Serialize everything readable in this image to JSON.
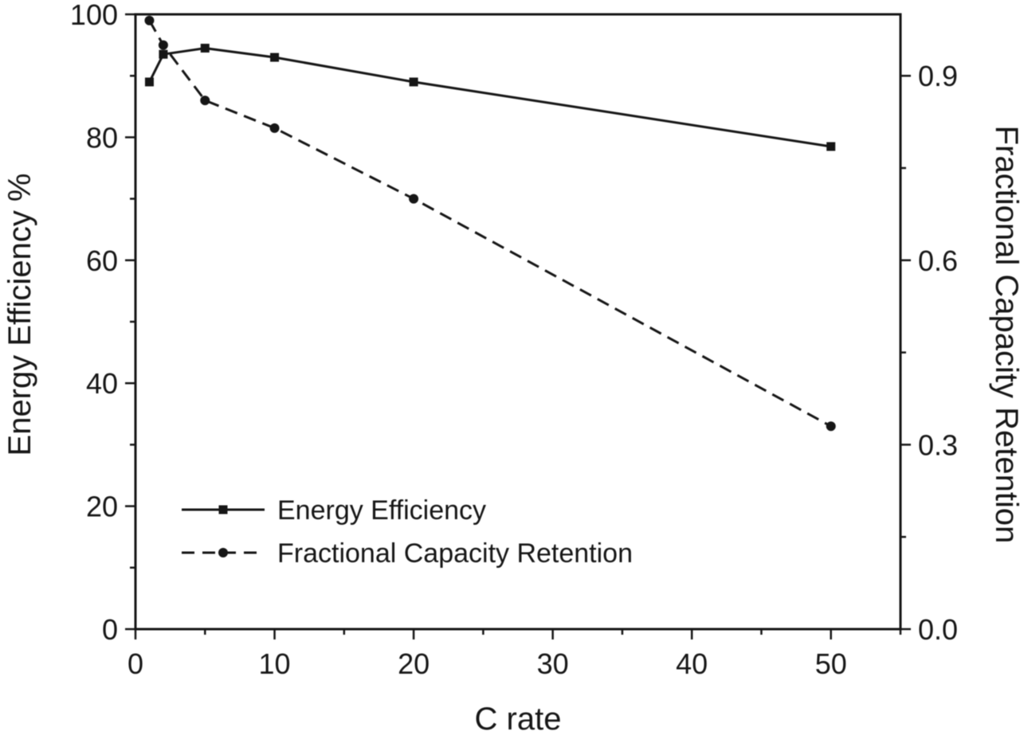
{
  "figure": {
    "background": "#ffffff",
    "ink": "#161616"
  },
  "chart_data": {
    "type": "line",
    "title": "",
    "xlabel": "C rate",
    "ylabel_left": "Energy Efficiency %",
    "ylabel_right": "Fractional Capacity Retention",
    "xlim": [
      0,
      55
    ],
    "xticks": [
      0,
      10,
      20,
      30,
      40,
      50
    ],
    "xticks_minor": [
      5,
      15,
      25,
      35,
      45,
      55
    ],
    "ylim_left": [
      0,
      100
    ],
    "yticks_left": [
      0,
      20,
      40,
      60,
      80,
      100
    ],
    "yticks_left_minor": [
      10,
      30,
      50,
      70,
      90
    ],
    "ylim_right": [
      0,
      1.0
    ],
    "yticks_right": [
      0,
      0.3,
      0.6,
      0.9
    ],
    "yticks_right_labels": [
      "0.0",
      "0.3",
      "0.6",
      "0.9"
    ],
    "yticks_right_minor": [
      0.15,
      0.45,
      0.75
    ],
    "grid": false,
    "legend_position": "lower-left",
    "series": [
      {
        "name": "Energy Efficiency",
        "axis": "left",
        "line": "solid",
        "marker": "square",
        "x": [
          1,
          2,
          5,
          10,
          20,
          50
        ],
        "y": [
          89,
          93.5,
          94.5,
          93,
          89,
          78.5
        ]
      },
      {
        "name": "Fractional Capacity Retention",
        "axis": "right",
        "line": "dashed",
        "marker": "circle",
        "x": [
          1,
          2,
          5,
          10,
          20,
          50
        ],
        "y": [
          0.99,
          0.95,
          0.86,
          0.815,
          0.7,
          0.33
        ]
      }
    ]
  }
}
